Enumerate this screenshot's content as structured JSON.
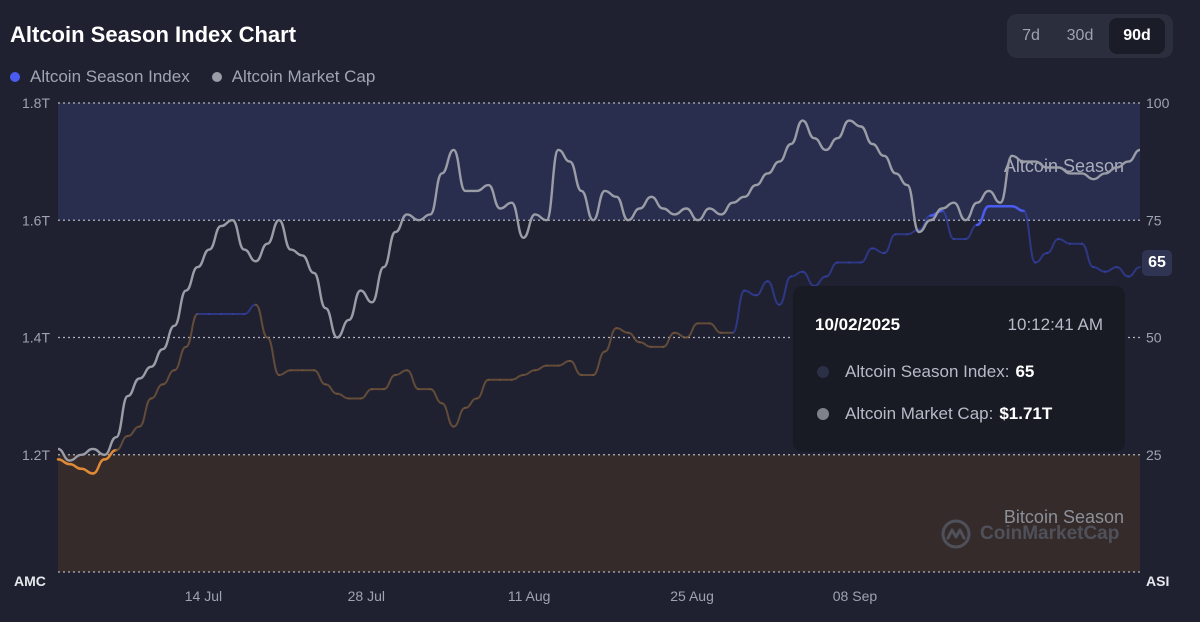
{
  "page": {
    "title": "Altcoin Season Index Chart"
  },
  "range_tabs": [
    {
      "label": "7d",
      "active": false
    },
    {
      "label": "30d",
      "active": false
    },
    {
      "label": "90d",
      "active": true
    }
  ],
  "legend": [
    {
      "label": "Altcoin Season Index",
      "color": "#4a5cf0"
    },
    {
      "label": "Altcoin Market Cap",
      "color": "#9a9ca6"
    }
  ],
  "watermark": "CoinMarketCap",
  "colors": {
    "altcoin_zone": "#2f3660",
    "bitcoin_zone": "#3d3128",
    "index_blue": "#3a4bc8",
    "index_orange": "#e08a36",
    "market_cap_line": "#9a9ca6"
  },
  "tooltip": {
    "date": "10/02/2025",
    "time": "10:12:41 AM",
    "index_label": "Altcoin Season Index:",
    "index_value": "65",
    "cap_label": "Altcoin Market Cap:",
    "cap_value": "$1.71T"
  },
  "current_marker": "65",
  "chart_data": {
    "type": "line",
    "x_ticks": [
      "14 Jul",
      "28 Jul",
      "11 Aug",
      "25 Aug",
      "08 Sep"
    ],
    "left_axis": {
      "title": "AMC",
      "ticks": [
        "1.8T",
        "1.6T",
        "1.4T",
        "1.2T"
      ],
      "range": [
        1.0,
        1.8
      ]
    },
    "right_axis": {
      "title": "ASI",
      "ticks": [
        "100",
        "75",
        "50",
        "25"
      ],
      "range": [
        0,
        100
      ]
    },
    "zones": [
      {
        "label": "Altcoin Season",
        "from": 75,
        "to": 100
      },
      {
        "label": "Bitcoin Season",
        "from": 0,
        "to": 25
      }
    ],
    "x_range": [
      0,
      93
    ],
    "series": [
      {
        "name": "Altcoin Season Index",
        "axis": "right",
        "values": [
          24,
          23,
          22,
          21,
          24,
          26,
          29,
          31,
          37,
          40,
          43,
          48,
          55,
          55,
          55,
          55,
          55,
          57,
          50,
          42,
          43,
          43,
          43,
          40,
          38,
          37,
          37,
          39,
          39,
          42,
          43,
          39,
          39,
          36,
          31,
          35,
          37,
          41,
          41,
          41,
          42,
          43,
          44,
          44,
          45,
          42,
          42,
          47,
          52,
          51,
          49,
          48,
          48,
          51,
          50,
          53,
          53,
          51,
          51,
          60,
          59,
          62,
          57,
          63,
          64,
          61,
          63,
          66,
          66,
          66,
          69,
          68,
          72,
          72,
          73,
          76,
          77,
          71,
          71,
          74,
          78,
          78,
          78,
          77,
          66,
          68,
          71,
          70,
          70,
          65,
          64,
          65,
          63,
          65
        ]
      },
      {
        "name": "Altcoin Market Cap",
        "axis": "left",
        "values": [
          1.21,
          1.19,
          1.2,
          1.21,
          1.2,
          1.23,
          1.3,
          1.33,
          1.35,
          1.38,
          1.42,
          1.48,
          1.52,
          1.55,
          1.59,
          1.6,
          1.55,
          1.53,
          1.56,
          1.6,
          1.55,
          1.54,
          1.51,
          1.45,
          1.4,
          1.43,
          1.48,
          1.46,
          1.52,
          1.58,
          1.61,
          1.6,
          1.61,
          1.68,
          1.72,
          1.65,
          1.65,
          1.66,
          1.62,
          1.63,
          1.57,
          1.61,
          1.6,
          1.72,
          1.7,
          1.65,
          1.6,
          1.65,
          1.64,
          1.6,
          1.62,
          1.64,
          1.62,
          1.61,
          1.62,
          1.6,
          1.62,
          1.61,
          1.63,
          1.64,
          1.66,
          1.68,
          1.7,
          1.73,
          1.77,
          1.74,
          1.72,
          1.74,
          1.77,
          1.76,
          1.73,
          1.71,
          1.68,
          1.66,
          1.58,
          1.6,
          1.62,
          1.63,
          1.6,
          1.63,
          1.65,
          1.63,
          1.71,
          1.7,
          1.7,
          1.69,
          1.69,
          1.68,
          1.68,
          1.67,
          1.68,
          1.69,
          1.7,
          1.72
        ]
      }
    ]
  }
}
